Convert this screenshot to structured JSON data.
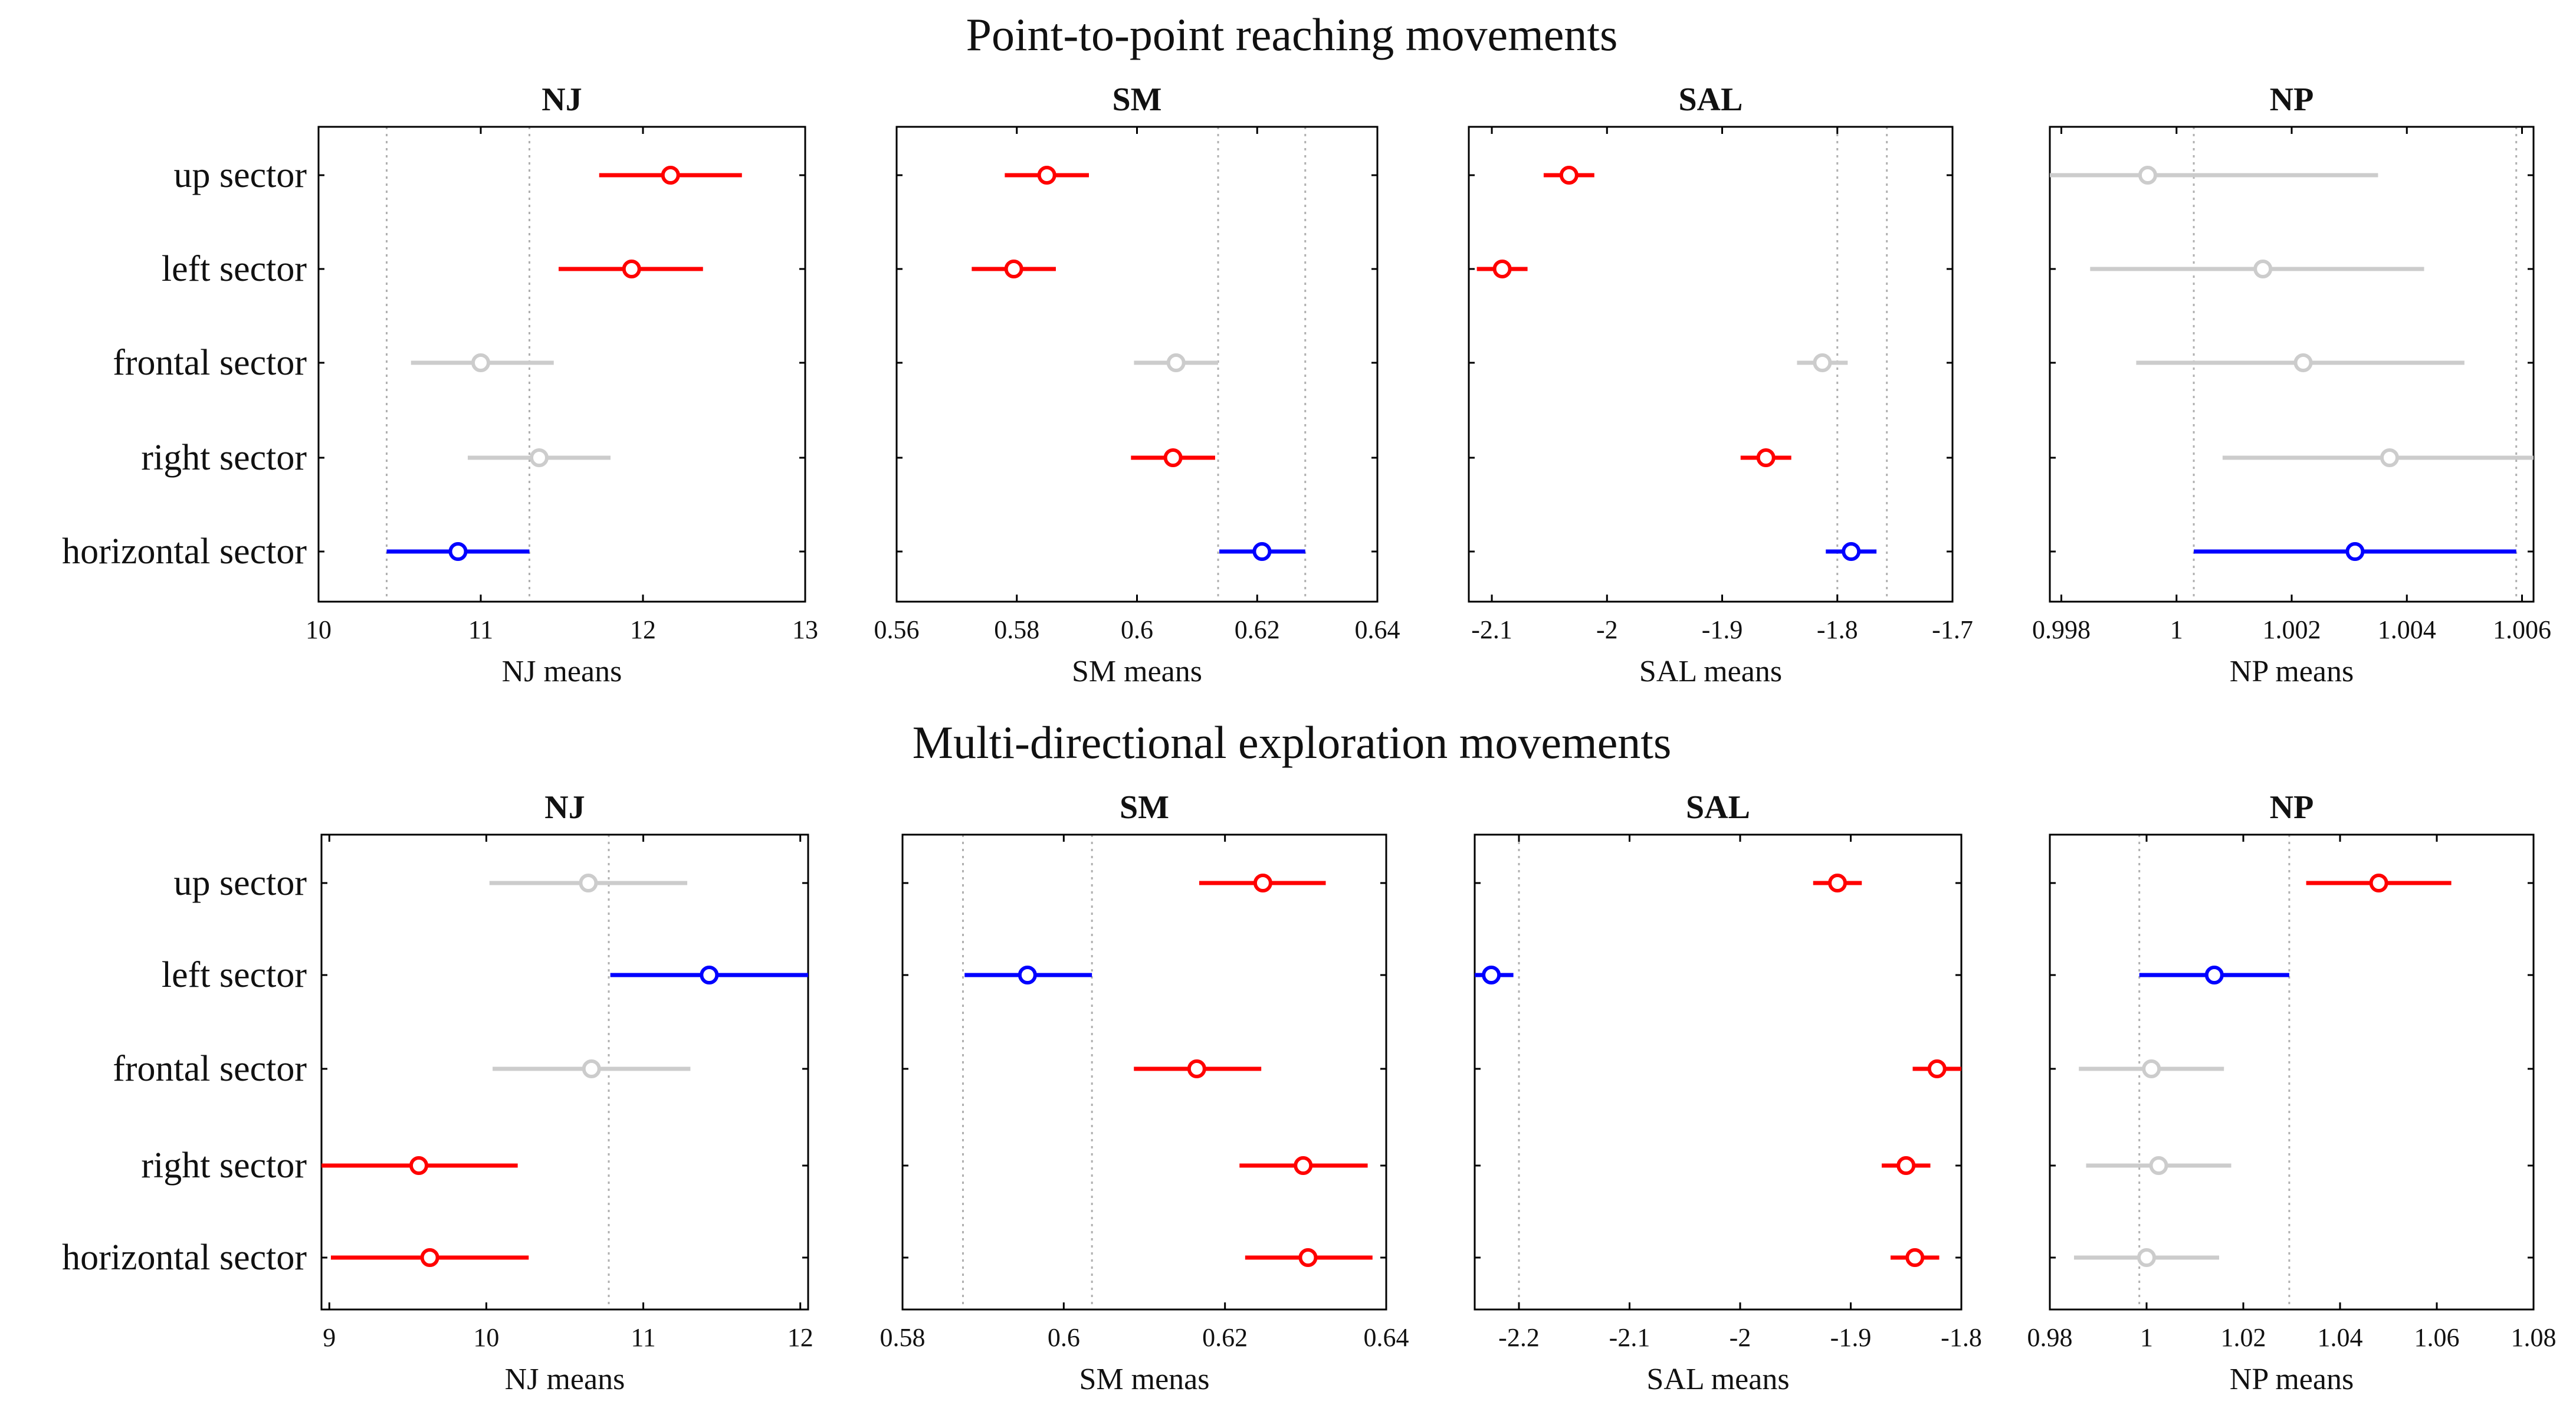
{
  "figure": {
    "colors": {
      "significant_high": "#ff0000",
      "reference": "#0000ff",
      "not_significant": "#cccccc",
      "frame": "#000000",
      "guide": "#b0b0b0"
    }
  },
  "rows": [
    {
      "title": "Point-to-point reaching movements",
      "categories": [
        "up sector",
        "left sector",
        "frontal sector",
        "right sector",
        "horizontal sector"
      ]
    },
    {
      "title": "Multi-directional exploration movements",
      "categories": [
        "up sector",
        "left sector",
        "frontal sector",
        "right sector",
        "horizontal sector"
      ]
    }
  ],
  "chart_data": [
    {
      "type": "errorbar",
      "row": 0,
      "title": "NJ",
      "xlabel": "NJ means",
      "xlim": [
        10,
        13
      ],
      "ticks": [
        10,
        11,
        12,
        13
      ],
      "tick_labels": [
        "10",
        "11",
        "12",
        "13"
      ],
      "guides": [
        10.42,
        11.3
      ],
      "points": [
        {
          "category": "up sector",
          "mean": 12.17,
          "lo": 11.73,
          "hi": 12.61,
          "color": "red"
        },
        {
          "category": "left sector",
          "mean": 11.93,
          "lo": 11.48,
          "hi": 12.37,
          "color": "red"
        },
        {
          "category": "frontal sector",
          "mean": 11.0,
          "lo": 10.57,
          "hi": 11.45,
          "color": "gray"
        },
        {
          "category": "right sector",
          "mean": 11.36,
          "lo": 10.92,
          "hi": 11.8,
          "color": "gray"
        },
        {
          "category": "horizontal sector",
          "mean": 10.86,
          "lo": 10.42,
          "hi": 11.3,
          "color": "blue"
        }
      ]
    },
    {
      "type": "errorbar",
      "row": 0,
      "title": "SM",
      "xlabel": "SM means",
      "xlim": [
        0.56,
        0.64
      ],
      "ticks": [
        0.56,
        0.58,
        0.6,
        0.62,
        0.64
      ],
      "tick_labels": [
        "0.56",
        "0.58",
        "0.6",
        "0.62",
        "0.64"
      ],
      "guides": [
        0.6135,
        0.628
      ],
      "points": [
        {
          "category": "up sector",
          "mean": 0.585,
          "lo": 0.578,
          "hi": 0.592,
          "color": "red"
        },
        {
          "category": "left sector",
          "mean": 0.5795,
          "lo": 0.5725,
          "hi": 0.5865,
          "color": "red"
        },
        {
          "category": "frontal sector",
          "mean": 0.6065,
          "lo": 0.5995,
          "hi": 0.6135,
          "color": "gray"
        },
        {
          "category": "right sector",
          "mean": 0.606,
          "lo": 0.599,
          "hi": 0.613,
          "color": "red"
        },
        {
          "category": "horizontal sector",
          "mean": 0.6208,
          "lo": 0.6137,
          "hi": 0.628,
          "color": "blue"
        }
      ]
    },
    {
      "type": "errorbar",
      "row": 0,
      "title": "SAL",
      "xlabel": "SAL means",
      "xlim": [
        -2.12,
        -1.7
      ],
      "ticks": [
        -2.1,
        -2.0,
        -1.9,
        -1.8,
        -1.7
      ],
      "tick_labels": [
        "-2.1",
        "-2",
        "-1.9",
        "-1.8",
        "-1.7"
      ],
      "guides": [
        -1.8,
        -1.757
      ],
      "points": [
        {
          "category": "up sector",
          "mean": -2.033,
          "lo": -2.055,
          "hi": -2.011,
          "color": "red"
        },
        {
          "category": "left sector",
          "mean": -2.091,
          "lo": -2.113,
          "hi": -2.069,
          "color": "red"
        },
        {
          "category": "frontal sector",
          "mean": -1.813,
          "lo": -1.835,
          "hi": -1.791,
          "color": "gray"
        },
        {
          "category": "right sector",
          "mean": -1.862,
          "lo": -1.884,
          "hi": -1.84,
          "color": "red"
        },
        {
          "category": "horizontal sector",
          "mean": -1.788,
          "lo": -1.81,
          "hi": -1.766,
          "color": "blue"
        }
      ]
    },
    {
      "type": "errorbar",
      "row": 0,
      "title": "NP",
      "xlabel": "NP means",
      "xlim": [
        0.9978,
        1.0062
      ],
      "ticks": [
        0.998,
        1.0,
        1.002,
        1.004,
        1.006
      ],
      "tick_labels": [
        "0.998",
        "1",
        "1.002",
        "1.004",
        "1.006"
      ],
      "guides": [
        1.0003,
        1.0059
      ],
      "points": [
        {
          "category": "up sector",
          "mean": 0.9995,
          "lo": 0.9978,
          "hi": 1.0035,
          "color": "gray"
        },
        {
          "category": "left sector",
          "mean": 1.0015,
          "lo": 0.9985,
          "hi": 1.0043,
          "color": "gray"
        },
        {
          "category": "frontal sector",
          "mean": 1.0022,
          "lo": 0.9993,
          "hi": 1.005,
          "color": "gray"
        },
        {
          "category": "right sector",
          "mean": 1.0037,
          "lo": 1.0008,
          "hi": 1.0062,
          "color": "gray"
        },
        {
          "category": "horizontal sector",
          "mean": 1.0031,
          "lo": 1.0003,
          "hi": 1.0059,
          "color": "blue"
        }
      ]
    },
    {
      "type": "errorbar",
      "row": 1,
      "title": "NJ",
      "xlabel": "NJ means",
      "xlim": [
        8.95,
        12.05
      ],
      "ticks": [
        9,
        10,
        11,
        12
      ],
      "tick_labels": [
        "9",
        "10",
        "11",
        "12"
      ],
      "guides": [
        10.78
      ],
      "points": [
        {
          "category": "up sector",
          "mean": 10.65,
          "lo": 10.02,
          "hi": 11.28,
          "color": "gray"
        },
        {
          "category": "left sector",
          "mean": 11.42,
          "lo": 10.79,
          "hi": 12.05,
          "color": "blue"
        },
        {
          "category": "frontal sector",
          "mean": 10.67,
          "lo": 10.04,
          "hi": 11.3,
          "color": "gray"
        },
        {
          "category": "right sector",
          "mean": 9.57,
          "lo": 8.95,
          "hi": 10.2,
          "color": "red"
        },
        {
          "category": "horizontal sector",
          "mean": 9.64,
          "lo": 9.01,
          "hi": 10.27,
          "color": "red"
        }
      ]
    },
    {
      "type": "errorbar",
      "row": 1,
      "title": "SM",
      "xlabel": "SM menas",
      "xlim": [
        0.58,
        0.64
      ],
      "ticks": [
        0.58,
        0.6,
        0.62,
        0.64
      ],
      "tick_labels": [
        "0.58",
        "0.6",
        "0.62",
        "0.64"
      ],
      "guides": [
        0.5875,
        0.6035
      ],
      "points": [
        {
          "category": "up sector",
          "mean": 0.6247,
          "lo": 0.6168,
          "hi": 0.6325,
          "color": "red"
        },
        {
          "category": "left sector",
          "mean": 0.5955,
          "lo": 0.5877,
          "hi": 0.6035,
          "color": "blue"
        },
        {
          "category": "frontal sector",
          "mean": 0.6165,
          "lo": 0.6087,
          "hi": 0.6245,
          "color": "red"
        },
        {
          "category": "right sector",
          "mean": 0.6297,
          "lo": 0.6218,
          "hi": 0.6377,
          "color": "red"
        },
        {
          "category": "horizontal sector",
          "mean": 0.6303,
          "lo": 0.6225,
          "hi": 0.6383,
          "color": "red"
        }
      ]
    },
    {
      "type": "errorbar",
      "row": 1,
      "title": "SAL",
      "xlabel": "SAL means",
      "xlim": [
        -2.24,
        -1.8
      ],
      "ticks": [
        -2.2,
        -2.1,
        -2.0,
        -1.9,
        -1.8
      ],
      "tick_labels": [
        "-2.2",
        "-2.1",
        "-2",
        "-1.9",
        "-1.8"
      ],
      "guides": [
        -2.2
      ],
      "points": [
        {
          "category": "up sector",
          "mean": -1.912,
          "lo": -1.934,
          "hi": -1.89,
          "color": "red"
        },
        {
          "category": "left sector",
          "mean": -2.225,
          "lo": -2.24,
          "hi": -2.205,
          "color": "blue"
        },
        {
          "category": "frontal sector",
          "mean": -1.822,
          "lo": -1.844,
          "hi": -1.8,
          "color": "red"
        },
        {
          "category": "right sector",
          "mean": -1.85,
          "lo": -1.872,
          "hi": -1.828,
          "color": "red"
        },
        {
          "category": "horizontal sector",
          "mean": -1.842,
          "lo": -1.864,
          "hi": -1.82,
          "color": "red"
        }
      ]
    },
    {
      "type": "errorbar",
      "row": 1,
      "title": "NP",
      "xlabel": "NP means",
      "xlim": [
        0.98,
        1.08
      ],
      "ticks": [
        0.98,
        1.0,
        1.02,
        1.04,
        1.06,
        1.08
      ],
      "tick_labels": [
        "0.98",
        "1",
        "1.02",
        "1.04",
        "1.06",
        "1.08"
      ],
      "guides": [
        0.9985,
        1.0295
      ],
      "points": [
        {
          "category": "up sector",
          "mean": 1.048,
          "lo": 1.033,
          "hi": 1.063,
          "color": "red"
        },
        {
          "category": "left sector",
          "mean": 1.014,
          "lo": 0.9985,
          "hi": 1.0295,
          "color": "blue"
        },
        {
          "category": "frontal sector",
          "mean": 1.001,
          "lo": 0.986,
          "hi": 1.016,
          "color": "gray"
        },
        {
          "category": "right sector",
          "mean": 1.0025,
          "lo": 0.9875,
          "hi": 1.0175,
          "color": "gray"
        },
        {
          "category": "horizontal sector",
          "mean": 1.0,
          "lo": 0.985,
          "hi": 1.015,
          "color": "gray"
        }
      ]
    }
  ]
}
